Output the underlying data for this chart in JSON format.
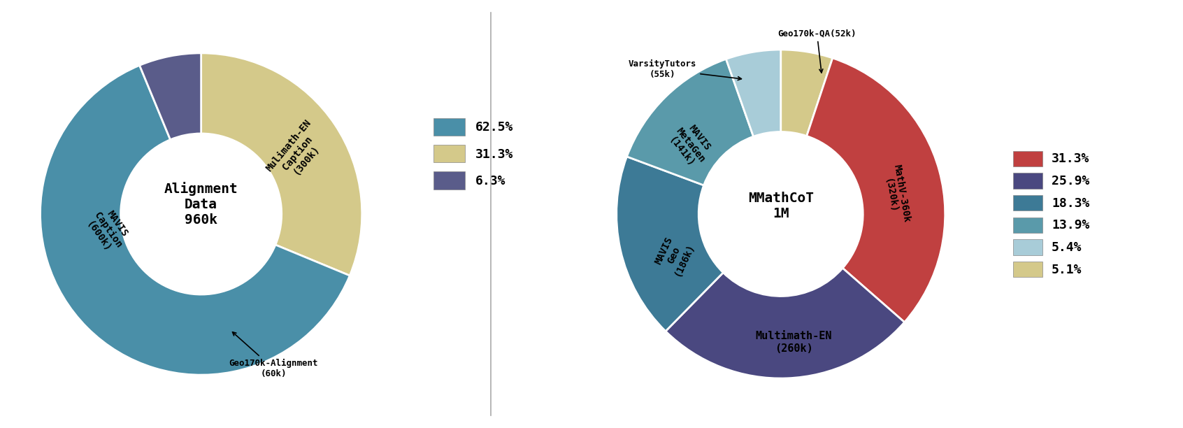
{
  "left_chart": {
    "title": "Alignment\nData\n960k",
    "slices": [
      {
        "label": "Mulimath-EN\nCaption\n(300k)",
        "value": 31.25,
        "color": "#d4c98a"
      },
      {
        "label": "MAVIS Caption\n(600k)",
        "value": 62.5,
        "color": "#4a8fa8"
      },
      {
        "label": "Geo170k-Alignment\n(60k)",
        "value": 6.25,
        "color": "#5a5c8a"
      }
    ],
    "legend_labels": [
      "62.5%",
      "31.3%",
      "6.3%"
    ],
    "legend_colors": [
      "#4a8fa8",
      "#d4c98a",
      "#5a5c8a"
    ]
  },
  "right_chart": {
    "title": "MMathCoT\n1M",
    "slices": [
      {
        "label": "Geo170k-QA\n(52k)",
        "value": 5.1,
        "color": "#d4c98a"
      },
      {
        "label": "MathV-360k\n(320k)",
        "value": 31.3,
        "color": "#c04040"
      },
      {
        "label": "Multimath-EN\n(260k)",
        "value": 25.9,
        "color": "#4a4880"
      },
      {
        "label": "MAVIS\nGeo\n(186k)",
        "value": 18.3,
        "color": "#3d7a96"
      },
      {
        "label": "MAVIS\nMetaGen\n(141k)",
        "value": 13.9,
        "color": "#5a9aaa"
      },
      {
        "label": "VarsityTutors\n(55k)",
        "value": 5.4,
        "color": "#a8ccd8"
      }
    ],
    "legend_labels": [
      "31.3%",
      "25.9%",
      "18.3%",
      "13.9%",
      "5.4%",
      "5.1%"
    ],
    "legend_colors": [
      "#c04040",
      "#4a4880",
      "#3d7a96",
      "#5a9aaa",
      "#a8ccd8",
      "#d4c98a"
    ]
  },
  "background_color": "#ffffff"
}
